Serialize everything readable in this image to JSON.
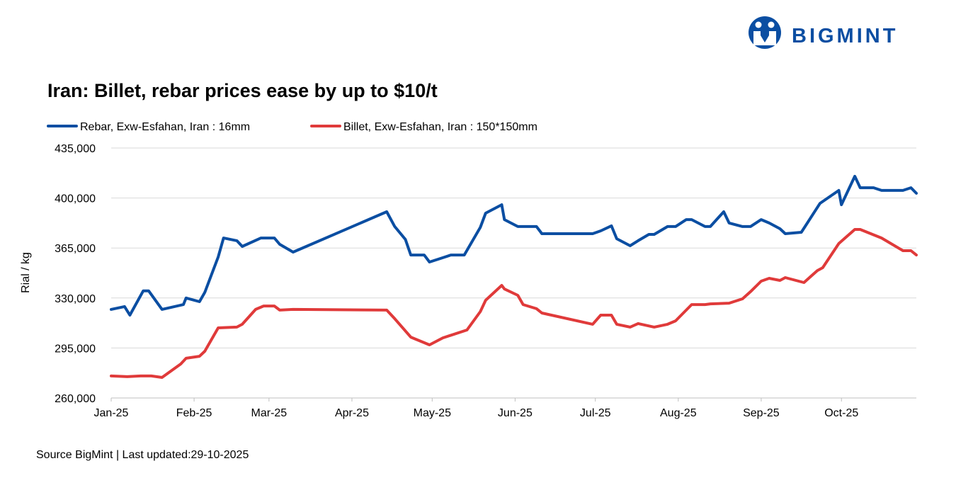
{
  "brand": "BIGMINT",
  "chart_data": {
    "type": "line",
    "title": "Iran: Billet, rebar prices ease by up to $10/t",
    "y_label": "Rial / kg",
    "source": "Source BigMint | Last updated:29-10-2025",
    "xlim": [
      0,
      301
    ],
    "xticks": [
      {
        "value": 0,
        "label": "Jan-25"
      },
      {
        "value": 31,
        "label": "Feb-25"
      },
      {
        "value": 59,
        "label": "Mar-25"
      },
      {
        "value": 90,
        "label": "Apr-25"
      },
      {
        "value": 120,
        "label": "May-25"
      },
      {
        "value": 151,
        "label": "Jun-25"
      },
      {
        "value": 181,
        "label": "Jul-25"
      },
      {
        "value": 212,
        "label": "Aug-25"
      },
      {
        "value": 243,
        "label": "Sep-25"
      },
      {
        "value": 273,
        "label": "Oct-25"
      }
    ],
    "ylim": [
      260000,
      435000
    ],
    "yticks": [
      {
        "value": 260000,
        "label": "260,000"
      },
      {
        "value": 295000,
        "label": "295,000"
      },
      {
        "value": 330000,
        "label": "330,000"
      },
      {
        "value": 365000,
        "label": "365,000"
      },
      {
        "value": 400000,
        "label": "400,000"
      },
      {
        "value": 435000,
        "label": "435,000"
      }
    ],
    "grid": true,
    "series": [
      {
        "name": "Rebar, Exw-Esfahan, Iran : 16mm",
        "color": "#0b4ea2",
        "x": [
          0,
          5,
          7,
          12,
          14,
          19,
          27,
          28,
          33,
          35,
          40,
          42,
          47,
          49,
          56,
          61,
          63,
          68,
          103,
          106,
          110,
          112,
          117,
          119,
          124,
          127,
          132,
          138,
          140,
          146,
          147,
          152,
          159,
          161,
          180,
          183,
          187,
          189,
          194,
          197,
          201,
          203,
          208,
          211,
          215,
          217,
          222,
          224,
          229,
          231,
          236,
          239,
          243,
          246,
          250,
          252,
          258,
          265,
          272,
          273,
          278,
          280,
          285,
          288,
          296,
          299,
          301
        ],
        "values": [
          322000,
          324000,
          318000,
          335000,
          335000,
          322000,
          325400,
          330000,
          327400,
          333900,
          358700,
          372000,
          370100,
          366100,
          372000,
          372000,
          367600,
          362100,
          390400,
          380000,
          371000,
          360100,
          360100,
          355200,
          358200,
          360100,
          360100,
          379500,
          389400,
          395300,
          384900,
          380000,
          380000,
          375000,
          375000,
          377000,
          380500,
          371500,
          366600,
          370100,
          374500,
          374500,
          380000,
          380000,
          384900,
          384900,
          380000,
          380000,
          390400,
          382500,
          380000,
          380000,
          384900,
          382500,
          378500,
          375000,
          376000,
          396300,
          405300,
          395300,
          415200,
          407200,
          407200,
          405300,
          405300,
          407200,
          403300
        ]
      },
      {
        "name": "Billet, Exw-Esfahan, Iran : 150*150mm",
        "color": "#e03a3a",
        "x": [
          0,
          6,
          11,
          15,
          19,
          26,
          28,
          33,
          35,
          40,
          47,
          49,
          54,
          57,
          61,
          63,
          68,
          103,
          106,
          112,
          119,
          124,
          133,
          138,
          140,
          146,
          147,
          152,
          154,
          159,
          161,
          180,
          183,
          187,
          189,
          194,
          197,
          203,
          208,
          211,
          217,
          222,
          224,
          231,
          236,
          239,
          243,
          246,
          250,
          252,
          259,
          264,
          266,
          272,
          278,
          280,
          288,
          296,
          299,
          301
        ],
        "values": [
          275400,
          274900,
          275400,
          275400,
          274400,
          283800,
          287800,
          289200,
          292700,
          309100,
          309600,
          311600,
          322000,
          324400,
          324400,
          321500,
          322000,
          321500,
          315500,
          302600,
          297200,
          302100,
          307600,
          320500,
          328400,
          338800,
          336300,
          331900,
          325400,
          322500,
          319500,
          311600,
          318000,
          318000,
          311600,
          309600,
          312100,
          309600,
          311600,
          314000,
          325400,
          325400,
          325900,
          326400,
          329400,
          334400,
          341800,
          343800,
          342300,
          344300,
          340800,
          349200,
          351200,
          368100,
          378000,
          378000,
          372000,
          363100,
          363100,
          360100
        ]
      }
    ]
  }
}
